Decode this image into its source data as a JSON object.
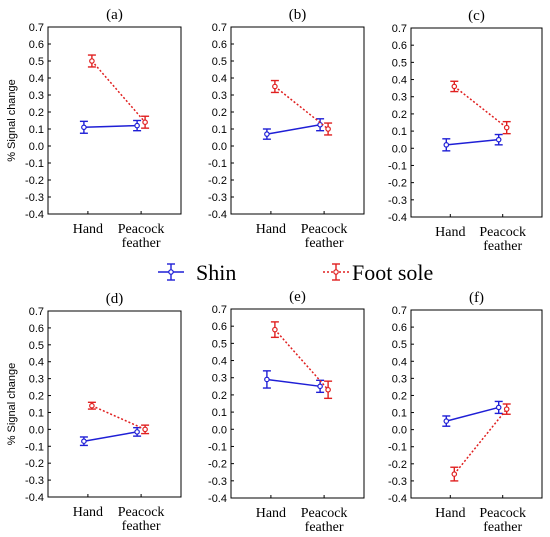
{
  "chart_data": {
    "type": "line",
    "ylabel": "% Signal change",
    "categories": [
      "Hand",
      "Peacock feather"
    ],
    "category_lines": [
      [
        "Hand"
      ],
      [
        "Peacock",
        "feather"
      ]
    ],
    "ylim": [
      -0.4,
      0.7
    ],
    "yticks": [
      "-0.4",
      "-0.3",
      "-0.2",
      "-0.1",
      "0.0",
      "0.1",
      "0.2",
      "0.3",
      "0.4",
      "0.5",
      "0.6",
      "0.7"
    ],
    "colors": {
      "Shin": "#1f1fd6",
      "Foot sole": "#e02020"
    },
    "legend": {
      "placement": "center",
      "entries": [
        "Shin",
        "Foot sole"
      ]
    },
    "panels": [
      {
        "label": "(a)",
        "series": [
          {
            "name": "Shin",
            "values": [
              0.11,
              0.12
            ],
            "errors": [
              0.035,
              0.03
            ]
          },
          {
            "name": "Foot sole",
            "values": [
              0.5,
              0.14
            ],
            "errors": [
              0.035,
              0.035
            ]
          }
        ]
      },
      {
        "label": "(b)",
        "series": [
          {
            "name": "Shin",
            "values": [
              0.07,
              0.125
            ],
            "errors": [
              0.03,
              0.035
            ]
          },
          {
            "name": "Foot sole",
            "values": [
              0.35,
              0.1
            ],
            "errors": [
              0.035,
              0.035
            ]
          }
        ]
      },
      {
        "label": "(c)",
        "series": [
          {
            "name": "Shin",
            "values": [
              0.02,
              0.05
            ],
            "errors": [
              0.035,
              0.03
            ]
          },
          {
            "name": "Foot sole",
            "values": [
              0.36,
              0.12
            ],
            "errors": [
              0.03,
              0.035
            ]
          }
        ]
      },
      {
        "label": "(d)",
        "series": [
          {
            "name": "Shin",
            "values": [
              -0.07,
              -0.015
            ],
            "errors": [
              0.025,
              0.025
            ]
          },
          {
            "name": "Foot sole",
            "values": [
              0.14,
              0.0
            ],
            "errors": [
              0.02,
              0.025
            ]
          }
        ]
      },
      {
        "label": "(e)",
        "series": [
          {
            "name": "Shin",
            "values": [
              0.29,
              0.25
            ],
            "errors": [
              0.05,
              0.035
            ]
          },
          {
            "name": "Foot sole",
            "values": [
              0.58,
              0.23
            ],
            "errors": [
              0.045,
              0.05
            ]
          }
        ]
      },
      {
        "label": "(f)",
        "series": [
          {
            "name": "Shin",
            "values": [
              0.05,
              0.13
            ],
            "errors": [
              0.03,
              0.035
            ]
          },
          {
            "name": "Foot sole",
            "values": [
              -0.26,
              0.12
            ],
            "errors": [
              0.04,
              0.03
            ]
          }
        ]
      }
    ]
  }
}
